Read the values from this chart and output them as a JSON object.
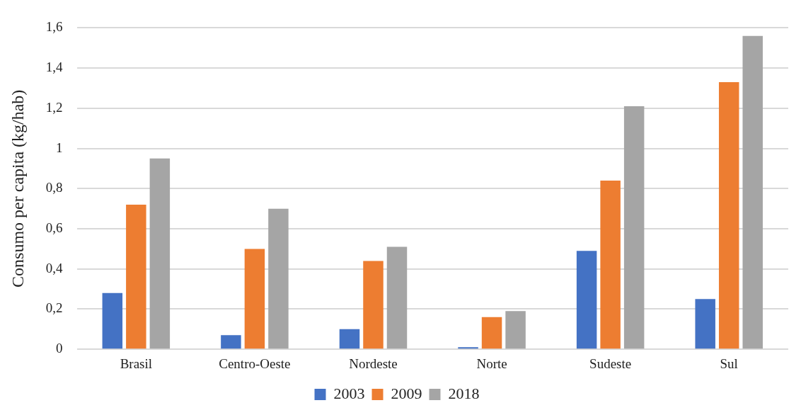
{
  "chart_data": {
    "type": "bar",
    "ylabel": "Consumo per capita (kg/hab)",
    "categories": [
      "Brasil",
      "Centro-Oeste",
      "Nordeste",
      "Norte",
      "Sudeste",
      "Sul"
    ],
    "series": [
      {
        "name": "2003",
        "color": "#4472c4",
        "values": [
          0.28,
          0.07,
          0.1,
          0.01,
          0.49,
          0.25
        ]
      },
      {
        "name": "2009",
        "color": "#ed7d31",
        "values": [
          0.72,
          0.5,
          0.44,
          0.16,
          0.84,
          1.33
        ]
      },
      {
        "name": "2018",
        "color": "#a5a5a5",
        "values": [
          0.95,
          0.7,
          0.51,
          0.19,
          1.21,
          1.56
        ]
      }
    ],
    "ylim": [
      0,
      1.6
    ],
    "yticks": [
      0,
      {
        "value": 0.2,
        "label": "0,2"
      },
      {
        "value": 0.4,
        "label": "0,4"
      },
      {
        "value": 0.6,
        "label": "0,6"
      },
      {
        "value": 0.8,
        "label": "0,8"
      },
      1,
      {
        "value": 1.2,
        "label": "1,2"
      },
      {
        "value": 1.4,
        "label": "1,4"
      },
      {
        "value": 1.6,
        "label": "1,6"
      }
    ],
    "grid": "y",
    "legend": "bottom"
  }
}
